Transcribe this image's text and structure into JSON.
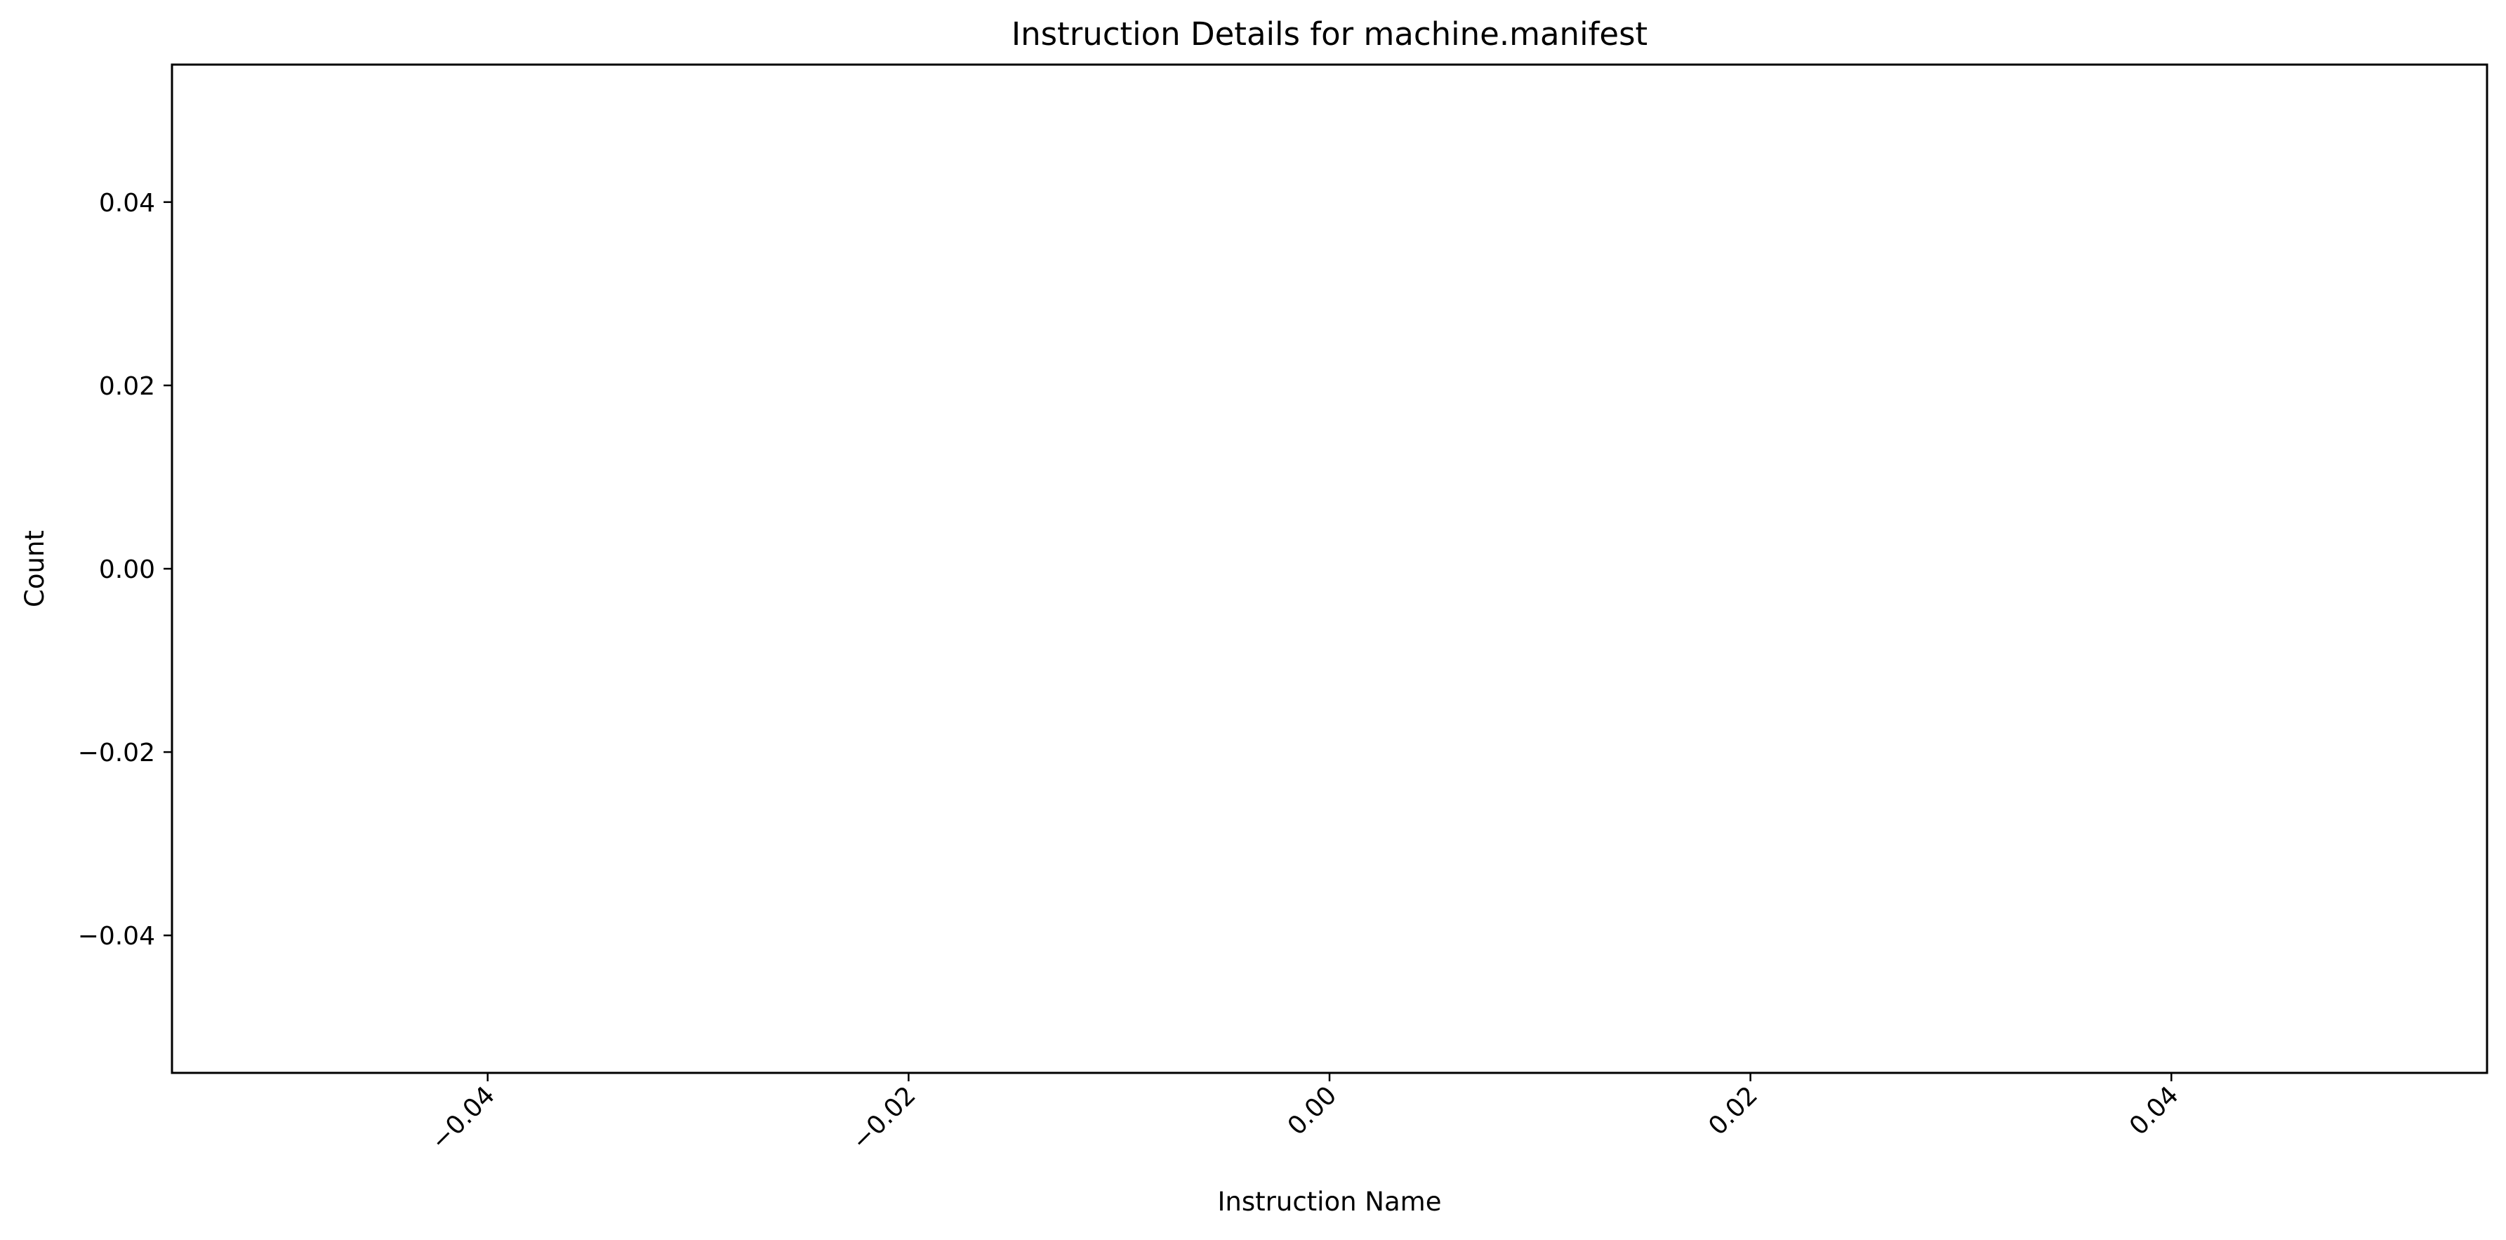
{
  "chart_data": {
    "type": "bar",
    "title": "Instruction Details for machine.manifest",
    "xlabel": "Instruction Name",
    "ylabel": "Count",
    "categories": [],
    "values": [],
    "xlim": [
      -0.055,
      0.055
    ],
    "ylim": [
      -0.055,
      0.055
    ],
    "x_ticks": [
      -0.04,
      -0.02,
      0.0,
      0.02,
      0.04
    ],
    "x_tick_labels": [
      "−0.04",
      "−0.02",
      "0.00",
      "0.02",
      "0.04"
    ],
    "y_ticks": [
      -0.04,
      -0.02,
      0.0,
      0.02,
      0.04
    ],
    "y_tick_labels": [
      "−0.04",
      "−0.02",
      "0.00",
      "0.02",
      "0.04"
    ],
    "grid": false,
    "legend": "none"
  }
}
